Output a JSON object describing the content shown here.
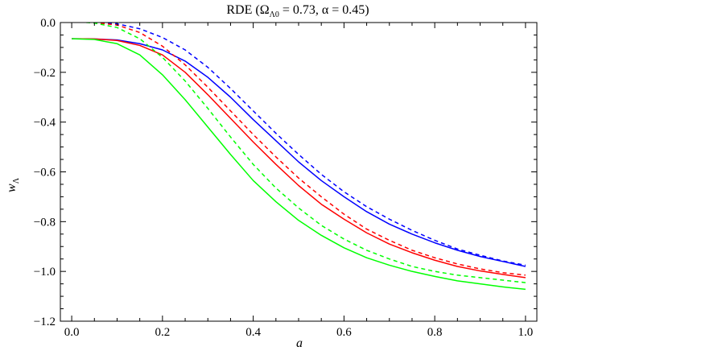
{
  "chart_data": {
    "type": "line",
    "title_main": "RDE (Ω",
    "title_sub": "Λ0",
    "title_rest": " = 0.73, α = 0.45)",
    "xlabel": "a",
    "ylabel_main": "w",
    "ylabel_sub": "Λ",
    "xlim": [
      -0.025,
      1.025
    ],
    "ylim": [
      -1.2,
      0.0
    ],
    "x_ticks": [
      0.0,
      0.2,
      0.4,
      0.6,
      0.8,
      1.0
    ],
    "x_tick_labels": [
      "0.0",
      "0.2",
      "0.4",
      "0.6",
      "0.8",
      "1.0"
    ],
    "y_ticks": [
      0.0,
      -0.2,
      -0.4,
      -0.6,
      -0.8,
      -1.0,
      -1.2
    ],
    "y_tick_labels": [
      "0.0",
      "−0.2",
      "−0.4",
      "−0.6",
      "−0.8",
      "−1.0",
      "−1.2"
    ],
    "grid": false,
    "x": [
      0.0,
      0.05,
      0.1,
      0.15,
      0.2,
      0.25,
      0.3,
      0.35,
      0.4,
      0.45,
      0.5,
      0.55,
      0.6,
      0.65,
      0.7,
      0.75,
      0.8,
      0.85,
      0.9,
      0.95,
      1.0
    ],
    "series": [
      {
        "color": "#0000ff",
        "dash": false,
        "values": [
          -0.065,
          -0.066,
          -0.07,
          -0.085,
          -0.11,
          -0.155,
          -0.22,
          -0.3,
          -0.39,
          -0.475,
          -0.56,
          -0.635,
          -0.7,
          -0.76,
          -0.81,
          -0.85,
          -0.885,
          -0.915,
          -0.94,
          -0.96,
          -0.98
        ]
      },
      {
        "color": "#ff0000",
        "dash": false,
        "values": [
          -0.065,
          -0.066,
          -0.072,
          -0.092,
          -0.13,
          -0.2,
          -0.29,
          -0.385,
          -0.48,
          -0.57,
          -0.655,
          -0.73,
          -0.79,
          -0.845,
          -0.89,
          -0.925,
          -0.955,
          -0.98,
          -0.998,
          -1.012,
          -1.025
        ]
      },
      {
        "color": "#00ff00",
        "dash": false,
        "values": [
          -0.065,
          -0.068,
          -0.085,
          -0.13,
          -0.21,
          -0.31,
          -0.42,
          -0.53,
          -0.635,
          -0.72,
          -0.795,
          -0.855,
          -0.905,
          -0.945,
          -0.975,
          -1.0,
          -1.02,
          -1.038,
          -1.05,
          -1.062,
          -1.072
        ]
      },
      {
        "color": "#0000ff",
        "dash": true,
        "values": [
          0.005,
          0.002,
          -0.005,
          -0.025,
          -0.06,
          -0.11,
          -0.18,
          -0.265,
          -0.355,
          -0.445,
          -0.53,
          -0.61,
          -0.68,
          -0.74,
          -0.79,
          -0.835,
          -0.875,
          -0.91,
          -0.935,
          -0.958,
          -0.975
        ]
      },
      {
        "color": "#ff0000",
        "dash": true,
        "values": [
          0.005,
          0.0,
          -0.01,
          -0.04,
          -0.095,
          -0.17,
          -0.26,
          -0.355,
          -0.45,
          -0.54,
          -0.625,
          -0.7,
          -0.77,
          -0.83,
          -0.875,
          -0.915,
          -0.945,
          -0.97,
          -0.99,
          -1.005,
          -1.015
        ]
      },
      {
        "color": "#00ff00",
        "dash": true,
        "values": [
          0.005,
          -0.002,
          -0.02,
          -0.065,
          -0.14,
          -0.235,
          -0.345,
          -0.46,
          -0.57,
          -0.665,
          -0.745,
          -0.815,
          -0.87,
          -0.915,
          -0.95,
          -0.98,
          -1.0,
          -1.015,
          -1.025,
          -1.035,
          -1.045
        ]
      }
    ]
  }
}
